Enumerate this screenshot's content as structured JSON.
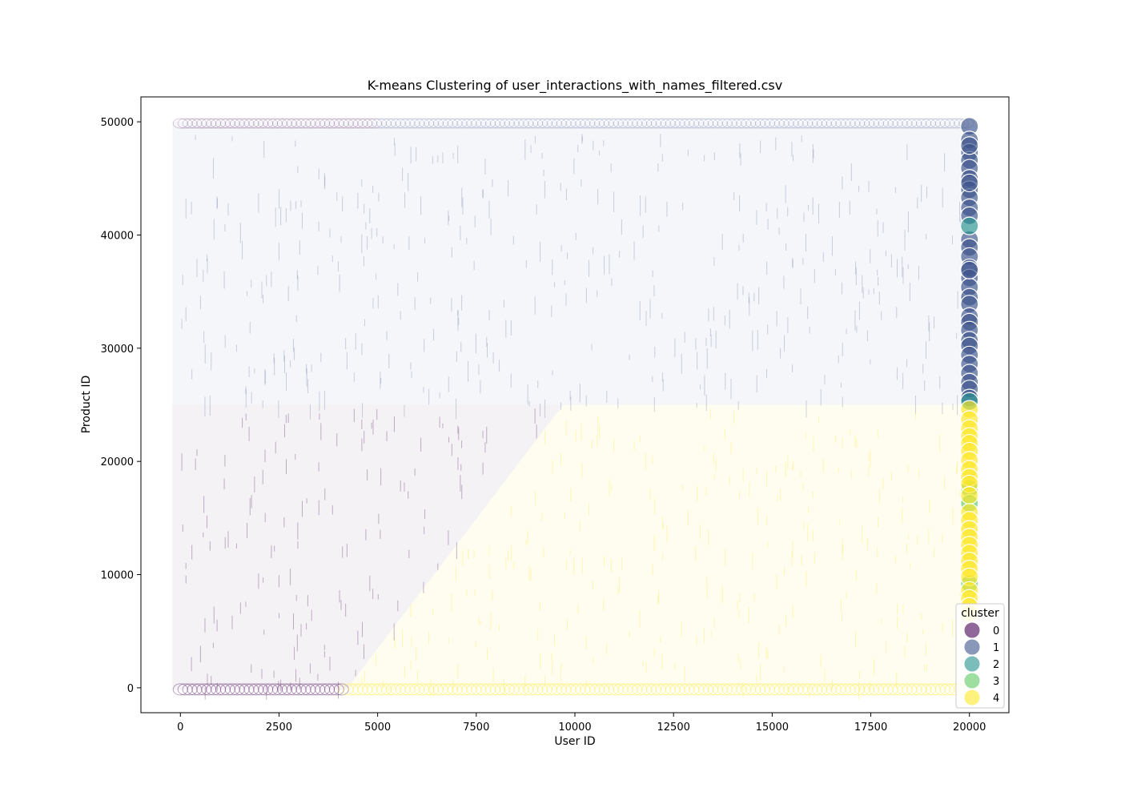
{
  "chart_data": {
    "type": "scatter",
    "title": "K-means Clustering of user_interactions_with_names_filtered.csv",
    "xlabel": "User ID",
    "ylabel": "Product ID",
    "xlim": [
      -1000,
      21000
    ],
    "ylim": [
      -2200,
      52200
    ],
    "xticks": [
      0,
      2500,
      5000,
      7500,
      10000,
      12500,
      15000,
      17500,
      20000
    ],
    "xtick_labels": [
      "0",
      "2500",
      "5000",
      "7500",
      "10000",
      "12500",
      "15000",
      "17500",
      "20000"
    ],
    "yticks": [
      0,
      10000,
      20000,
      30000,
      40000,
      50000
    ],
    "ytick_labels": [
      "0",
      "10000",
      "20000",
      "30000",
      "40000",
      "50000"
    ],
    "grid": false,
    "legend": {
      "title": "cluster",
      "placement": "lower right",
      "entries": [
        "0",
        "1",
        "2",
        "3",
        "4"
      ]
    },
    "colors": {
      "cluster_0": "#440154",
      "cluster_1": "#3b528b",
      "cluster_2": "#21918c",
      "cluster_3": "#5ec962",
      "cluster_4": "#fde725"
    },
    "regions": {
      "cluster_1_product_id_min": 25000,
      "cluster_boundary_bottom": {
        "user_id": 4200,
        "product_id": 0
      },
      "cluster_boundary_top": {
        "user_id": 9700,
        "product_id": 25000
      }
    },
    "series": [
      {
        "name": "1",
        "x": [
          20000,
          20000,
          20000,
          20000,
          20000,
          20000,
          20000,
          20000,
          20000,
          20000,
          20000,
          20000,
          20000,
          20000,
          20000,
          20000,
          20000,
          20000,
          20000,
          20000,
          20000,
          20000,
          20000,
          20000,
          20000,
          20000,
          20000,
          20000,
          20000,
          20000,
          20000,
          20000
        ],
        "y": [
          49600,
          48400,
          47300,
          46600,
          45900,
          45000,
          44000,
          43300,
          42400,
          41700,
          39600,
          38900,
          38100,
          37100,
          36200,
          35400,
          34500,
          33900,
          32800,
          32300,
          31600,
          30700,
          30200,
          29400,
          28600,
          27800,
          27000,
          26400,
          25600,
          44600,
          47900,
          36900
        ]
      },
      {
        "name": "2",
        "x": [
          20000,
          20000
        ],
        "y": [
          40800,
          25300
        ]
      },
      {
        "name": "3",
        "x": [
          20000,
          20000,
          20000
        ],
        "y": [
          17600,
          16300,
          9200
        ]
      },
      {
        "name": "4",
        "x": [
          20000,
          20000,
          20000,
          20000,
          20000,
          20000,
          20000,
          20000,
          20000,
          20000,
          20000,
          20000,
          20000,
          20000,
          20000,
          20000,
          20000,
          20000,
          20000,
          20000,
          20000,
          20000,
          20000,
          20000
        ],
        "y": [
          24600,
          23700,
          22900,
          22200,
          21600,
          20900,
          20100,
          19300,
          18600,
          18000,
          17000,
          15500,
          14800,
          14000,
          13300,
          12600,
          11900,
          11200,
          10500,
          9800,
          8600,
          7900,
          7200,
          6600
        ]
      }
    ]
  }
}
